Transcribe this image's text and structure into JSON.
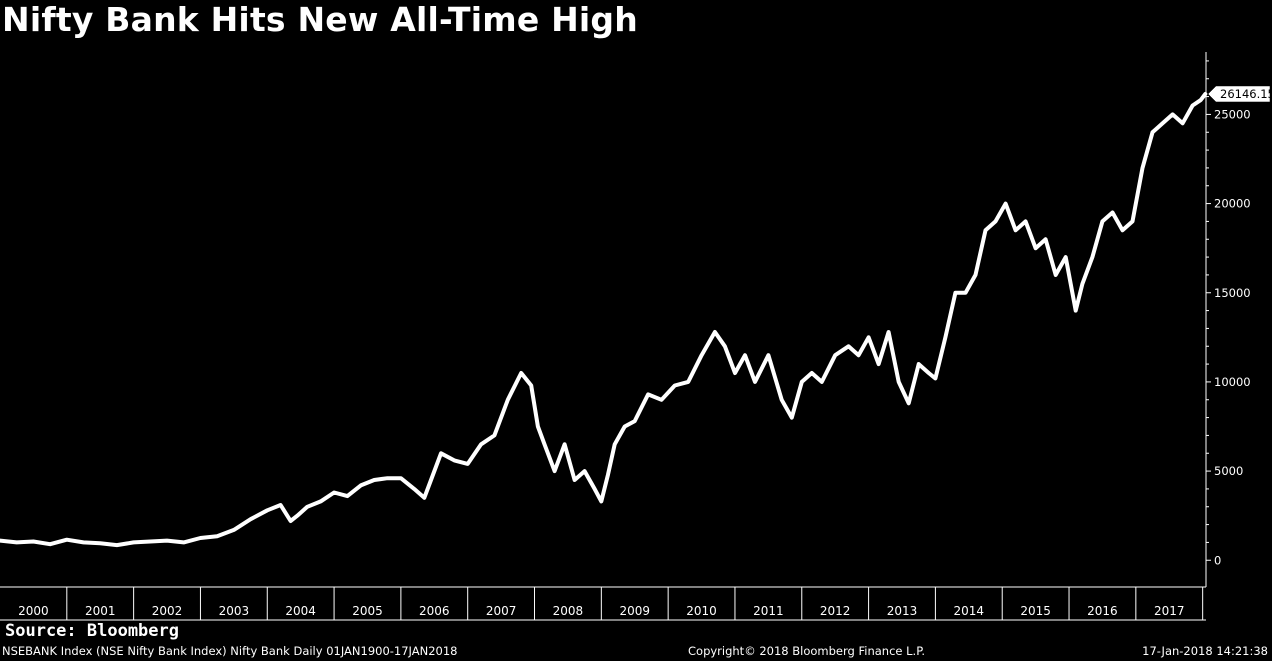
{
  "title": "Nifty Bank Hits New All-Time High",
  "source": "Source: Bloomberg",
  "footer": {
    "left": "NSEBANK Index (NSE Nifty Bank Index) Nifty Bank  Daily 01JAN1900-17JAN2018",
    "center": "Copyright© 2018 Bloomberg Finance L.P.",
    "right": "17-Jan-2018 14:21:38"
  },
  "colors": {
    "background": "#000000",
    "line": "#ffffff",
    "axis": "#ffffff"
  },
  "chart_data": {
    "type": "line",
    "title": "Nifty Bank Hits New All-Time High",
    "xlabel": "",
    "ylabel": "",
    "x_ticks": [
      "2000",
      "2001",
      "2002",
      "2003",
      "2004",
      "2005",
      "2006",
      "2007",
      "2008",
      "2009",
      "2010",
      "2011",
      "2012",
      "2013",
      "2014",
      "2015",
      "2016",
      "2017"
    ],
    "y_ticks": [
      0,
      5000,
      10000,
      15000,
      20000,
      25000
    ],
    "ylim": [
      -1500,
      28500
    ],
    "xlim": [
      2000.0,
      2018.05
    ],
    "last_value_label": "26146.15",
    "grid": false,
    "legend": "none",
    "series": [
      {
        "name": "",
        "x": [
          2000.0,
          2000.25,
          2000.5,
          2000.75,
          2001.0,
          2001.25,
          2001.5,
          2001.75,
          2002.0,
          2002.25,
          2002.5,
          2002.75,
          2003.0,
          2003.25,
          2003.5,
          2003.75,
          2004.0,
          2004.2,
          2004.35,
          2004.45,
          2004.6,
          2004.8,
          2005.0,
          2005.2,
          2005.4,
          2005.6,
          2005.8,
          2006.0,
          2006.2,
          2006.35,
          2006.45,
          2006.6,
          2006.8,
          2007.0,
          2007.2,
          2007.4,
          2007.6,
          2007.8,
          2007.95,
          2008.05,
          2008.15,
          2008.3,
          2008.45,
          2008.6,
          2008.75,
          2008.9,
          2009.0,
          2009.1,
          2009.2,
          2009.35,
          2009.5,
          2009.7,
          2009.9,
          2010.1,
          2010.3,
          2010.5,
          2010.7,
          2010.85,
          2011.0,
          2011.15,
          2011.3,
          2011.5,
          2011.7,
          2011.85,
          2012.0,
          2012.15,
          2012.3,
          2012.5,
          2012.7,
          2012.85,
          2013.0,
          2013.15,
          2013.3,
          2013.45,
          2013.6,
          2013.75,
          2013.9,
          2014.0,
          2014.15,
          2014.3,
          2014.45,
          2014.6,
          2014.75,
          2014.9,
          2015.05,
          2015.2,
          2015.35,
          2015.5,
          2015.65,
          2015.8,
          2015.95,
          2016.1,
          2016.2,
          2016.35,
          2016.5,
          2016.65,
          2016.8,
          2016.95,
          2017.1,
          2017.25,
          2017.4,
          2017.55,
          2017.7,
          2017.85,
          2017.97,
          2018.04
        ],
        "values": [
          1100,
          1000,
          1050,
          900,
          1150,
          1000,
          950,
          850,
          1000,
          1050,
          1100,
          1000,
          1250,
          1350,
          1700,
          2300,
          2800,
          3100,
          2200,
          2500,
          3000,
          3300,
          3800,
          3600,
          4200,
          4500,
          4600,
          4600,
          4000,
          3500,
          4500,
          6000,
          5600,
          5400,
          6500,
          7000,
          9000,
          10500,
          9800,
          7500,
          6500,
          5000,
          6500,
          4500,
          5000,
          4000,
          3300,
          4800,
          6500,
          7500,
          7800,
          9300,
          9000,
          9800,
          10000,
          11500,
          12800,
          12000,
          10500,
          11500,
          10000,
          11500,
          9000,
          8000,
          10000,
          10500,
          10000,
          11500,
          12000,
          11500,
          12500,
          11000,
          12800,
          10000,
          8800,
          11000,
          10500,
          10200,
          12500,
          15000,
          15000,
          16000,
          18500,
          19000,
          20000,
          18500,
          19000,
          17500,
          18000,
          16000,
          17000,
          14000,
          15500,
          17000,
          19000,
          19500,
          18500,
          19000,
          22000,
          24000,
          24500,
          25000,
          24500,
          25500,
          25800,
          26146
        ]
      }
    ]
  }
}
